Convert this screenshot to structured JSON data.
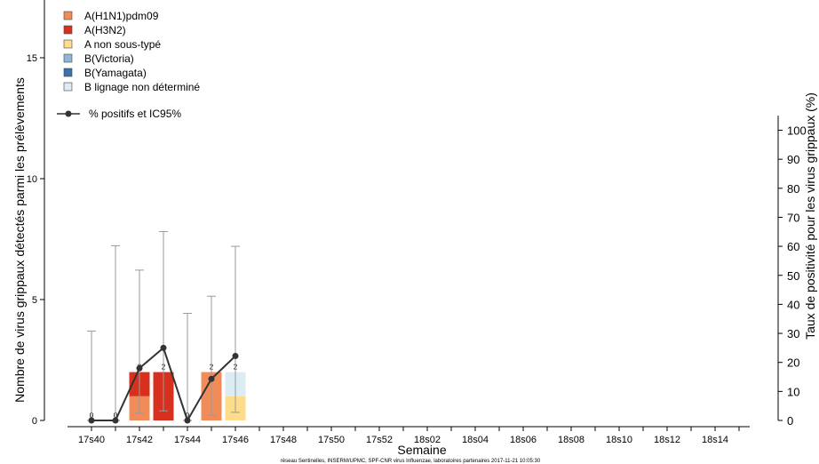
{
  "chart_data": {
    "type": "bar",
    "xlabel": "Semaine",
    "ylabel_left": "Nombre de virus grippaux détectés parmi les prélèvements",
    "ylabel_right": "Taux de positivité pour les virus grippaux (%)",
    "ylim_left": [
      0,
      32
    ],
    "ylim_right": [
      0,
      105
    ],
    "yticks_left": [
      0,
      5,
      10,
      15,
      20,
      25,
      30
    ],
    "yticks_right": [
      0,
      10,
      20,
      30,
      40,
      50,
      60,
      70,
      80,
      90,
      100
    ],
    "weeks": [
      "17s40",
      "17s41",
      "17s42",
      "17s43",
      "17s44",
      "17s45",
      "17s46",
      "17s47",
      "17s48",
      "17s49",
      "17s50",
      "17s51",
      "17s52",
      "18s01",
      "18s02",
      "18s03",
      "18s04",
      "18s05",
      "18s06",
      "18s07",
      "18s08",
      "18s09",
      "18s10",
      "18s11",
      "18s12",
      "18s13",
      "18s14",
      "18s15"
    ],
    "tick_labels": [
      "17s40",
      "17s42",
      "17s44",
      "17s46",
      "17s48",
      "17s50",
      "17s52",
      "18s02",
      "18s04",
      "18s06",
      "18s08",
      "18s10",
      "18s12",
      "18s14"
    ],
    "series": [
      {
        "name": "A(H1N1)pdm09",
        "color": "#f08c5a",
        "values": [
          0,
          0,
          1,
          0,
          0,
          2,
          0
        ]
      },
      {
        "name": "A(H3N2)",
        "color": "#d7301f",
        "values": [
          0,
          0,
          1,
          2,
          0,
          0,
          0
        ]
      },
      {
        "name": "A non sous-typé",
        "color": "#fddc8c",
        "values": [
          0,
          0,
          0,
          0,
          0,
          0,
          1
        ]
      },
      {
        "name": "B(Victoria)",
        "color": "#8fb8d8",
        "values": [
          0,
          0,
          0,
          0,
          0,
          0,
          0
        ]
      },
      {
        "name": "B(Yamagata)",
        "color": "#3a6fb0",
        "values": [
          0,
          0,
          0,
          0,
          0,
          0,
          0
        ]
      },
      {
        "name": "B lignage non déterminé",
        "color": "#dcecf4",
        "values": [
          0,
          0,
          0,
          0,
          0,
          0,
          1
        ]
      }
    ],
    "bar_totals": [
      "0",
      "0",
      "2",
      "2",
      "0",
      "2",
      "2"
    ],
    "positivity": {
      "name": "% positifs et IC95%",
      "color": "#333333",
      "values": [
        0,
        0,
        18,
        25,
        0,
        14.3,
        22.2
      ],
      "ci_low": [
        0,
        0,
        2.5,
        3.3,
        0,
        1.8,
        2.8
      ],
      "ci_high": [
        30.8,
        60.2,
        51.8,
        65.1,
        36.9,
        42.8,
        60
      ]
    }
  },
  "footer": "réseau Sentinelles, INSERM/UPMC, SPF-CNR virus Influenzae, laboratoires partenaires 2017-11-21 10:05:30"
}
